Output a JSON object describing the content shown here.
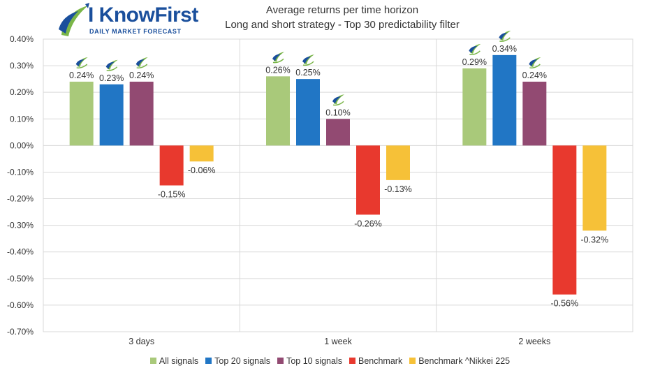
{
  "logo": {
    "text": "I KnowFirst",
    "tagline": "DAILY MARKET FORECAST"
  },
  "chart_data": {
    "type": "bar",
    "title": "Average returns per time horizon",
    "subtitle": "Long and short strategy - Top 30 predictability filter",
    "categories": [
      "3 days",
      "1 week",
      "2 weeks"
    ],
    "series": [
      {
        "name": "All signals",
        "color": "#a9c97a",
        "values": [
          0.24,
          0.26,
          0.29
        ],
        "labels": [
          "0.24%",
          "0.26%",
          "0.29%"
        ]
      },
      {
        "name": "Top 20 signals",
        "color": "#2176c5",
        "values": [
          0.23,
          0.25,
          0.34
        ],
        "labels": [
          "0.23%",
          "0.25%",
          "0.34%"
        ]
      },
      {
        "name": "Top 10 signals",
        "color": "#924a72",
        "values": [
          0.24,
          0.1,
          0.24
        ],
        "labels": [
          "0.24%",
          "0.10%",
          "0.24%"
        ]
      },
      {
        "name": "Benchmark",
        "color": "#e8392e",
        "values": [
          -0.15,
          -0.26,
          -0.56
        ],
        "labels": [
          "-0.15%",
          "-0.26%",
          "-0.56%"
        ]
      },
      {
        "name": "Benchmark ^Nikkei 225",
        "color": "#f6c138",
        "values": [
          -0.06,
          -0.13,
          -0.32
        ],
        "labels": [
          "-0.06%",
          "-0.13%",
          "-0.32%"
        ]
      }
    ],
    "ylim": [
      -0.7,
      0.4
    ],
    "yticks": [
      0.4,
      0.3,
      0.2,
      0.1,
      0.0,
      -0.1,
      -0.2,
      -0.3,
      -0.4,
      -0.5,
      -0.6,
      -0.7
    ],
    "ytick_labels": [
      "0.40%",
      "0.30%",
      "0.20%",
      "0.10%",
      "0.00%",
      "-0.10%",
      "-0.20%",
      "-0.30%",
      "-0.40%",
      "-0.50%",
      "-0.60%",
      "-0.70%"
    ],
    "grid": true,
    "legend_position": "bottom",
    "marker_icon": "leaf-logo-icon"
  }
}
